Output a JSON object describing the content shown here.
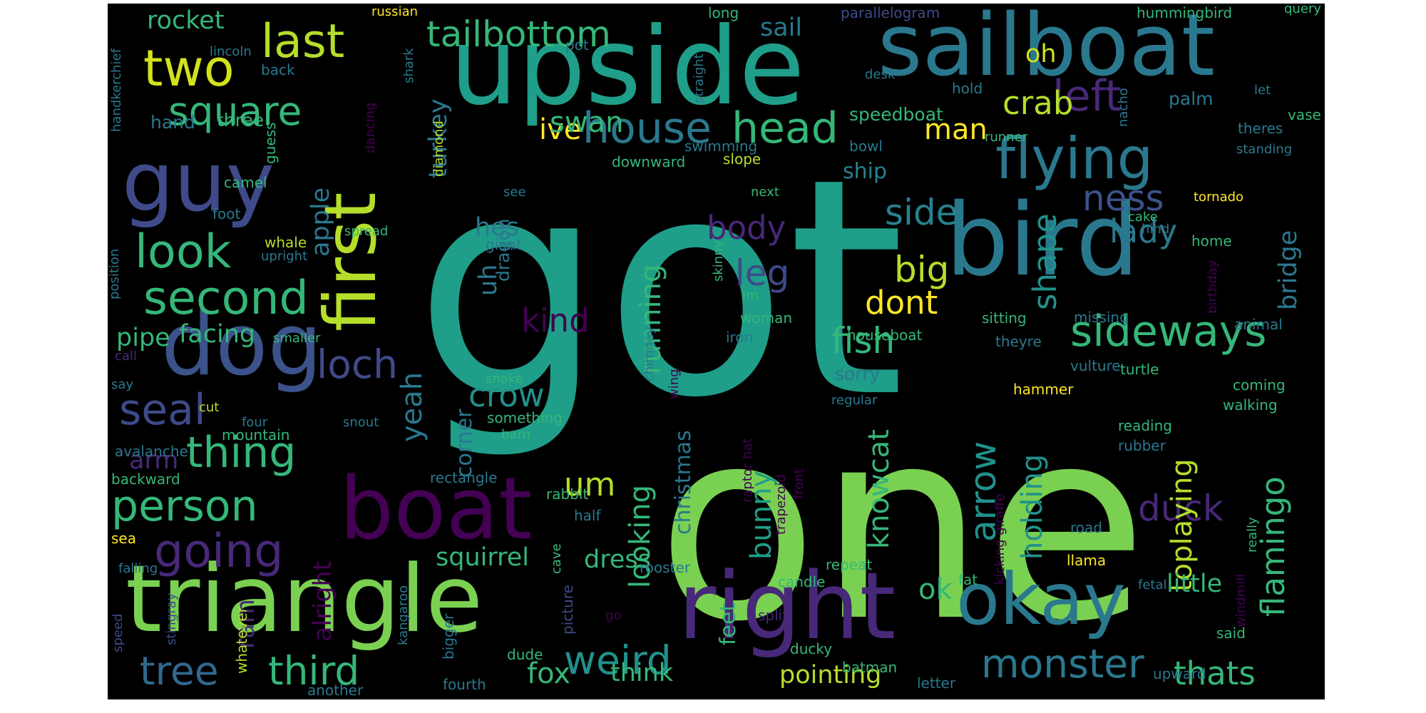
{
  "colors": {
    "background": "#000000",
    "page": "#ffffff",
    "palette": [
      "#440154",
      "#482878",
      "#3e4a89",
      "#31688e",
      "#26828e",
      "#1f9e89",
      "#35b779",
      "#6ece58",
      "#b5de2b",
      "#fde725"
    ]
  },
  "words": [
    {
      "text": "got",
      "c": "#1f9e89"
    },
    {
      "text": "one",
      "c": "#7ad151"
    },
    {
      "text": "upside",
      "c": "#1f9e89"
    },
    {
      "text": "sailboat",
      "c": "#2a788e"
    },
    {
      "text": "bird",
      "c": "#2a788e"
    },
    {
      "text": "triangle",
      "c": "#7ad151"
    },
    {
      "text": "right",
      "c": "#482878"
    },
    {
      "text": "okay",
      "c": "#2a788e"
    },
    {
      "text": "boat",
      "c": "#440154"
    },
    {
      "text": "first",
      "c": "#b5de2b"
    },
    {
      "text": "guy",
      "c": "#3e4a89"
    },
    {
      "text": "dog",
      "c": "#3b528b"
    },
    {
      "text": "flying",
      "c": "#2a788e"
    },
    {
      "text": "two",
      "c": "#d2e21b"
    },
    {
      "text": "last",
      "c": "#b5de2b"
    },
    {
      "text": "square",
      "c": "#35b779"
    },
    {
      "text": "tailbottom",
      "c": "#35b779"
    },
    {
      "text": "house",
      "c": "#2a788e"
    },
    {
      "text": "head",
      "c": "#35b779"
    },
    {
      "text": "left",
      "c": "#482878"
    },
    {
      "text": "look",
      "c": "#35b779"
    },
    {
      "text": "second",
      "c": "#35b779"
    },
    {
      "text": "person",
      "c": "#35b779"
    },
    {
      "text": "thing",
      "c": "#35b779"
    },
    {
      "text": "loch",
      "c": "#3e4a89"
    },
    {
      "text": "seal",
      "c": "#3e4a89"
    },
    {
      "text": "going",
      "c": "#482878"
    },
    {
      "text": "tree",
      "c": "#31688e"
    },
    {
      "text": "third",
      "c": "#35b779"
    },
    {
      "text": "weird",
      "c": "#21918c"
    },
    {
      "text": "monster",
      "c": "#2a788e"
    },
    {
      "text": "thats",
      "c": "#35b779"
    },
    {
      "text": "sideways",
      "c": "#35b779"
    },
    {
      "text": "fish",
      "c": "#35b779"
    },
    {
      "text": "crow",
      "c": "#21918c"
    },
    {
      "text": "dont",
      "c": "#fde725"
    },
    {
      "text": "big",
      "c": "#b5de2b"
    },
    {
      "text": "side",
      "c": "#26828e"
    },
    {
      "text": "ness",
      "c": "#3b528b"
    },
    {
      "text": "lady",
      "c": "#2a788e"
    },
    {
      "text": "shape",
      "c": "#21918c"
    },
    {
      "text": "bridge",
      "c": "#2a788e"
    },
    {
      "text": "body",
      "c": "#482878"
    },
    {
      "text": "leg",
      "c": "#3e4a89"
    },
    {
      "text": "kind",
      "c": "#440154"
    },
    {
      "text": "duck",
      "c": "#482878"
    },
    {
      "text": "flamingo",
      "c": "#35b779"
    },
    {
      "text": "arrow",
      "c": "#21918c"
    },
    {
      "text": "holding",
      "c": "#21918c"
    },
    {
      "text": "toplaying",
      "c": "#b5de2b"
    },
    {
      "text": "little",
      "c": "#35b779"
    },
    {
      "text": "bunny",
      "c": "#1f9e89"
    },
    {
      "text": "knowcat",
      "c": "#35b779"
    },
    {
      "text": "running",
      "c": "#35b779"
    },
    {
      "text": "looking",
      "c": "#35b779"
    },
    {
      "text": "christmas",
      "c": "#2a788e"
    },
    {
      "text": "yeah",
      "c": "#2a788e"
    },
    {
      "text": "corner",
      "c": "#2a788e"
    },
    {
      "text": "um",
      "c": "#b5de2b"
    },
    {
      "text": "crab",
      "c": "#b5de2b"
    },
    {
      "text": "man",
      "c": "#fde725"
    },
    {
      "text": "ive",
      "c": "#fde725"
    },
    {
      "text": "swan",
      "c": "#35b779"
    },
    {
      "text": "turkey",
      "c": "#2a788e"
    },
    {
      "text": "uh",
      "c": "#2a788e"
    },
    {
      "text": "dragon",
      "c": "#2a788e"
    },
    {
      "text": "hes",
      "c": "#2a788e"
    },
    {
      "text": "pipe",
      "c": "#35b779"
    },
    {
      "text": "facing",
      "c": "#35b779"
    },
    {
      "text": "apple",
      "c": "#2a788e"
    },
    {
      "text": "rocket",
      "c": "#35b779"
    },
    {
      "text": "sail",
      "c": "#2a788e"
    },
    {
      "text": "oh",
      "c": "#d2e21b"
    },
    {
      "text": "palm",
      "c": "#2a788e"
    },
    {
      "text": "ship",
      "c": "#26828e"
    },
    {
      "text": "sorry",
      "c": "#2a788e"
    },
    {
      "text": "ok",
      "c": "#35b779"
    },
    {
      "text": "pointing",
      "c": "#b5de2b"
    },
    {
      "text": "fox",
      "c": "#35b779"
    },
    {
      "text": "think",
      "c": "#35b779"
    },
    {
      "text": "feet",
      "c": "#35b779"
    },
    {
      "text": "dress",
      "c": "#35b779"
    },
    {
      "text": "squirrel",
      "c": "#35b779"
    },
    {
      "text": "alright",
      "c": "#440154"
    },
    {
      "text": "ram",
      "c": "#482878"
    },
    {
      "text": "arm",
      "c": "#482878"
    },
    {
      "text": "hand",
      "c": "#2a788e"
    },
    {
      "text": "three",
      "c": "#35b779"
    },
    {
      "text": "speedboat",
      "c": "#35b779"
    },
    {
      "text": "russian",
      "c": "#fde725"
    },
    {
      "text": "lincoln",
      "c": "#2a788e"
    },
    {
      "text": "pot",
      "c": "#2a788e"
    },
    {
      "text": "long",
      "c": "#35b779"
    },
    {
      "text": "parallelogram",
      "c": "#3e4a89"
    },
    {
      "text": "hummingbird",
      "c": "#35b779"
    },
    {
      "text": "query",
      "c": "#35b779"
    },
    {
      "text": "back",
      "c": "#2a788e"
    },
    {
      "text": "shark",
      "c": "#2a788e"
    },
    {
      "text": "straight",
      "c": "#2a788e"
    },
    {
      "text": "desk",
      "c": "#2a788e"
    },
    {
      "text": "hold",
      "c": "#2a788e"
    },
    {
      "text": "let",
      "c": "#2a788e"
    },
    {
      "text": "handkerchief",
      "c": "#2a788e"
    },
    {
      "text": "diamond",
      "c": "#b5de2b"
    },
    {
      "text": "nacho",
      "c": "#2a788e"
    },
    {
      "text": "theres",
      "c": "#2a788e"
    },
    {
      "text": "vase",
      "c": "#35b779"
    },
    {
      "text": "standing",
      "c": "#2a788e"
    },
    {
      "text": "downward",
      "c": "#35b779"
    },
    {
      "text": "swimming",
      "c": "#2a788e"
    },
    {
      "text": "bowl",
      "c": "#2a788e"
    },
    {
      "text": "runner",
      "c": "#35b779"
    },
    {
      "text": "guess",
      "c": "#35b779"
    },
    {
      "text": "dancing",
      "c": "#440154"
    },
    {
      "text": "slope",
      "c": "#b5de2b"
    },
    {
      "text": "camel",
      "c": "#35b779"
    },
    {
      "text": "foot",
      "c": "#2a788e"
    },
    {
      "text": "see",
      "c": "#2a788e"
    },
    {
      "text": "next",
      "c": "#35b779"
    },
    {
      "text": "tornado",
      "c": "#fde725"
    },
    {
      "text": "cake",
      "c": "#35b779"
    },
    {
      "text": "hind",
      "c": "#2a788e"
    },
    {
      "text": "birthday",
      "c": "#440154"
    },
    {
      "text": "home",
      "c": "#35b779"
    },
    {
      "text": "whale",
      "c": "#b5de2b"
    },
    {
      "text": "spread",
      "c": "#35b779"
    },
    {
      "text": "giant",
      "c": "#2a788e"
    },
    {
      "text": "upright",
      "c": "#2a788e"
    },
    {
      "text": "position",
      "c": "#2a788e"
    },
    {
      "text": "skinny",
      "c": "#35b779"
    },
    {
      "text": "im",
      "c": "#35b779"
    },
    {
      "text": "woman",
      "c": "#35b779"
    },
    {
      "text": "iron",
      "c": "#2a788e"
    },
    {
      "text": "chimney",
      "c": "#2a788e"
    },
    {
      "text": "houseboat",
      "c": "#35b779"
    },
    {
      "text": "sitting",
      "c": "#35b779"
    },
    {
      "text": "theyre",
      "c": "#2a788e"
    },
    {
      "text": "missing",
      "c": "#2a788e"
    },
    {
      "text": "animal",
      "c": "#2a788e"
    },
    {
      "text": "smaller",
      "c": "#35b779"
    },
    {
      "text": "call",
      "c": "#482878"
    },
    {
      "text": "say",
      "c": "#2a788e"
    },
    {
      "text": "snake",
      "c": "#35b779"
    },
    {
      "text": "wing",
      "c": "#440154"
    },
    {
      "text": "vulture",
      "c": "#2a788e"
    },
    {
      "text": "turtle",
      "c": "#35b779"
    },
    {
      "text": "coming",
      "c": "#35b779"
    },
    {
      "text": "hammer",
      "c": "#fde725"
    },
    {
      "text": "regular",
      "c": "#2a788e"
    },
    {
      "text": "walking",
      "c": "#35b779"
    },
    {
      "text": "cut",
      "c": "#b5de2b"
    },
    {
      "text": "four",
      "c": "#2a788e"
    },
    {
      "text": "snout",
      "c": "#2a788e"
    },
    {
      "text": "mountain",
      "c": "#35b779"
    },
    {
      "text": "something",
      "c": "#35b779"
    },
    {
      "text": "barn",
      "c": "#35b779"
    },
    {
      "text": "reading",
      "c": "#35b779"
    },
    {
      "text": "rubber",
      "c": "#2a788e"
    },
    {
      "text": "avalanche",
      "c": "#2a788e"
    },
    {
      "text": "backward",
      "c": "#35b779"
    },
    {
      "text": "rectangle",
      "c": "#2a788e"
    },
    {
      "text": "rabbit",
      "c": "#35b779"
    },
    {
      "text": "half",
      "c": "#2a788e"
    },
    {
      "text": "cave",
      "c": "#35b779"
    },
    {
      "text": "raptor hat",
      "c": "#440154"
    },
    {
      "text": "trapezoid",
      "c": "#440154"
    },
    {
      "text": "front",
      "c": "#440154"
    },
    {
      "text": "kicking giraffe",
      "c": "#440154"
    },
    {
      "text": "road",
      "c": "#2a788e"
    },
    {
      "text": "really",
      "c": "#35b779"
    },
    {
      "text": "sea",
      "c": "#fde725"
    },
    {
      "text": "falling",
      "c": "#2a788e"
    },
    {
      "text": "stingray",
      "c": "#3e4a89"
    },
    {
      "text": "speed",
      "c": "#3e4a89"
    },
    {
      "text": "whatever",
      "c": "#b5de2b"
    },
    {
      "text": "kangaroo",
      "c": "#2a788e"
    },
    {
      "text": "go",
      "c": "#440154"
    },
    {
      "text": "picture",
      "c": "#3e4a89"
    },
    {
      "text": "rooster",
      "c": "#2a788e"
    },
    {
      "text": "repeat",
      "c": "#35b779"
    },
    {
      "text": "candle",
      "c": "#35b779"
    },
    {
      "text": "llama",
      "c": "#fde725"
    },
    {
      "text": "fat",
      "c": "#35b779"
    },
    {
      "text": "fetal",
      "c": "#2a788e"
    },
    {
      "text": "windmill",
      "c": "#440154"
    },
    {
      "text": "split",
      "c": "#482878"
    },
    {
      "text": "said",
      "c": "#35b779"
    },
    {
      "text": "bigger",
      "c": "#2a788e"
    },
    {
      "text": "dude",
      "c": "#35b779"
    },
    {
      "text": "ducky",
      "c": "#35b779"
    },
    {
      "text": "batman",
      "c": "#35b779"
    },
    {
      "text": "letter",
      "c": "#2a788e"
    },
    {
      "text": "upward",
      "c": "#2a788e"
    },
    {
      "text": "fourth",
      "c": "#2a788e"
    },
    {
      "text": "another",
      "c": "#2a788e"
    }
  ]
}
